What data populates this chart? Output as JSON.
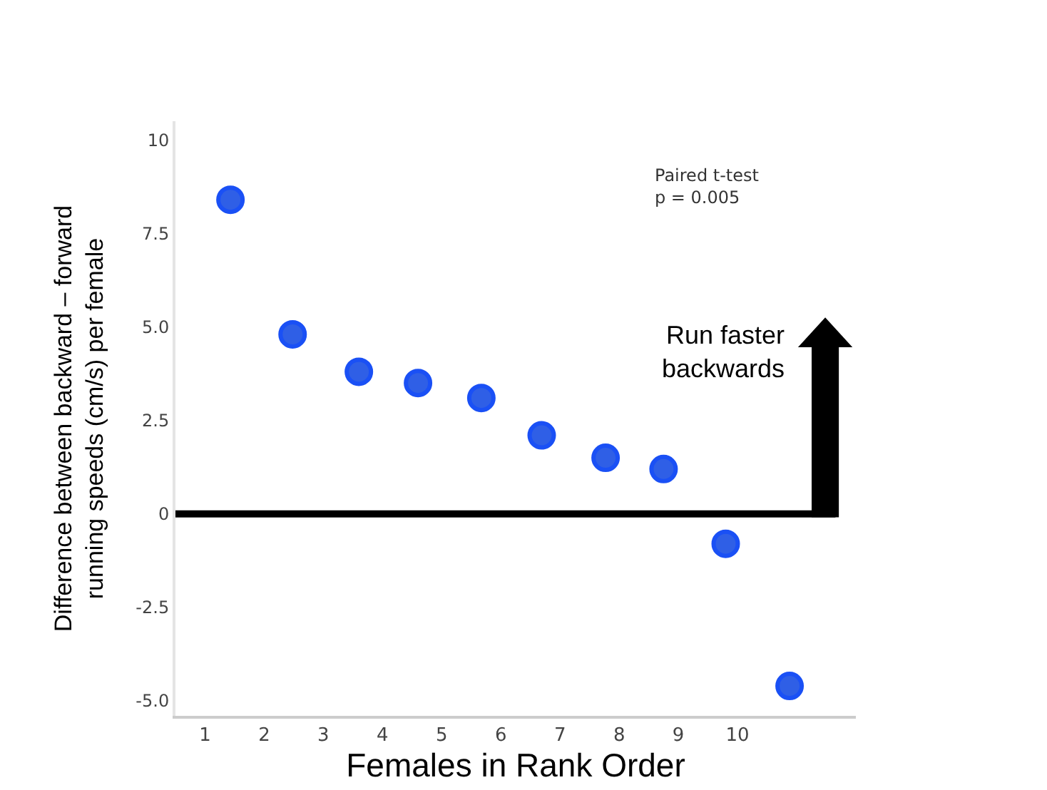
{
  "chart_data": {
    "type": "scatter",
    "xlabel": "Females in Rank Order",
    "ylabel": "Difference between backward – forward\nrunning speeds (cm/s) per female",
    "x": [
      1.43,
      2.48,
      3.6,
      4.6,
      5.67,
      6.69,
      7.77,
      8.75,
      9.8,
      10.88
    ],
    "values": [
      8.4,
      4.8,
      3.8,
      3.5,
      3.1,
      2.1,
      1.5,
      1.2,
      -0.8,
      -4.6
    ],
    "color": "#2f5fe6",
    "marker": "circle",
    "xlim": [
      0.5,
      12
    ],
    "xticks": [
      1,
      2,
      3,
      4,
      5,
      6,
      7,
      8,
      9,
      10
    ],
    "ylim": [
      -5.4,
      10.5
    ],
    "yticks": [
      {
        "value": 10,
        "label": "10"
      },
      {
        "value": 7.5,
        "label": "7.5"
      },
      {
        "value": 5,
        "label": "5.0"
      },
      {
        "value": 2.5,
        "label": "2.5"
      },
      {
        "value": 0,
        "label": "0"
      },
      {
        "value": -2.5,
        "label": "-2.5"
      },
      {
        "value": -5,
        "label": "-5.0"
      }
    ],
    "grid": false,
    "legend": false,
    "ref_lines": [
      {
        "axis": "y",
        "value": 0,
        "color": "#000000",
        "line_style": "solid"
      }
    ],
    "annotations": [
      "Paired t-test\np = 0.005",
      "Run faster\nbackwards"
    ]
  }
}
